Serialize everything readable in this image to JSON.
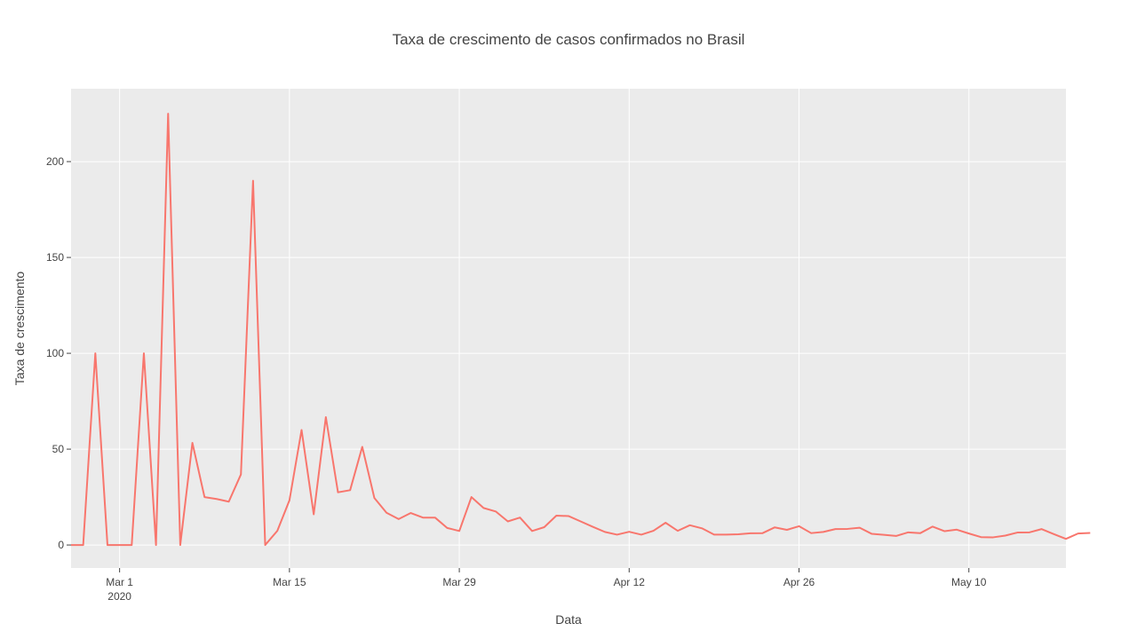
{
  "chart_data": {
    "type": "line",
    "title": "Taxa de crescimento de casos confirmados no Brasil",
    "xlabel": "Data",
    "ylabel": "Taxa de crescimento",
    "x_start": "2020-02-26",
    "x_end": "2020-05-17",
    "x_range": [
      "2020-02-26",
      "2020-05-18"
    ],
    "ylim": [
      -12,
      238
    ],
    "x_ticks": [
      {
        "date": "2020-03-01",
        "label": "Mar 1",
        "sublabel": "2020"
      },
      {
        "date": "2020-03-15",
        "label": "Mar 15",
        "sublabel": ""
      },
      {
        "date": "2020-03-29",
        "label": "Mar 29",
        "sublabel": ""
      },
      {
        "date": "2020-04-12",
        "label": "Apr 12",
        "sublabel": ""
      },
      {
        "date": "2020-04-26",
        "label": "Apr 26",
        "sublabel": ""
      },
      {
        "date": "2020-05-10",
        "label": "May 10",
        "sublabel": ""
      }
    ],
    "y_ticks": [
      0,
      50,
      100,
      150,
      200
    ],
    "grid": true,
    "line_color": "#F8766D",
    "background_color": "#EBEBEB",
    "series": [
      {
        "values": [
          0,
          0,
          100,
          0,
          0,
          0,
          100,
          0,
          225,
          0,
          53.3,
          25,
          24,
          22.6,
          36.8,
          190,
          0,
          7.4,
          23.3,
          60,
          16,
          66.7,
          27.5,
          28.6,
          51.2,
          24.5,
          16.8,
          13.5,
          16.7,
          14.3,
          14.3,
          8.9,
          7.3,
          25,
          19.3,
          17.5,
          12.3,
          14.3,
          7.3,
          9.3,
          15.3,
          15.1,
          12.3,
          9.5,
          6.8,
          5.4,
          6.9,
          5.4,
          7.4,
          11.6,
          7.4,
          10.3,
          8.7,
          5.4,
          5.4,
          5.6,
          6.1,
          6.2,
          9.2,
          7.9,
          9.8,
          6.2,
          6.8,
          8.3,
          8.4,
          9,
          5.8,
          5.3,
          4.7,
          6.6,
          6.2,
          9.6,
          7.2,
          8,
          6,
          4.1,
          4,
          4.9,
          6.5,
          6.6,
          8.3,
          5.7,
          3.2,
          6,
          6.3
        ]
      }
    ]
  }
}
